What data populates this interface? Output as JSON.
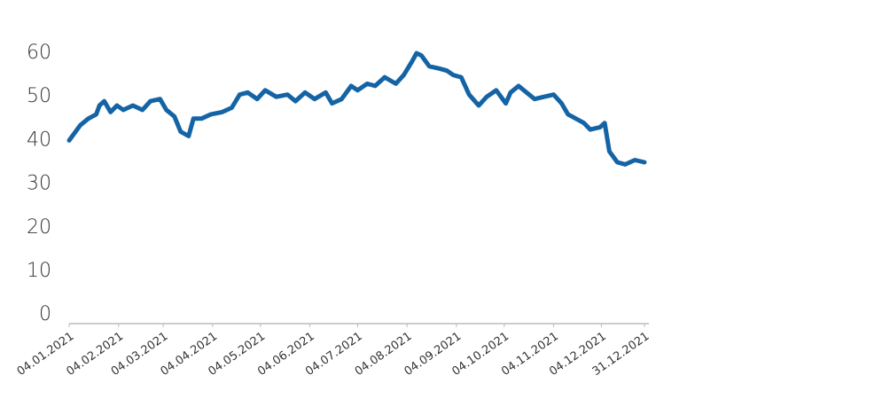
{
  "chart_data": {
    "type": "line",
    "x": [
      "04.01.2021",
      "11.01.2021",
      "16.01.2021",
      "21.01.2021",
      "23.01.2021",
      "26.01.2021",
      "30.01.2021",
      "03.02.2021",
      "07.02.2021",
      "13.02.2021",
      "19.02.2021",
      "24.02.2021",
      "02.03.2021",
      "06.03.2021",
      "11.03.2021",
      "15.03.2021",
      "20.03.2021",
      "23.03.2021",
      "28.03.2021",
      "03.04.2021",
      "10.04.2021",
      "16.04.2021",
      "21.04.2021",
      "26.04.2021",
      "02.05.2021",
      "07.05.2021",
      "14.05.2021",
      "21.05.2021",
      "26.05.2021",
      "01.06.2021",
      "07.06.2021",
      "14.06.2021",
      "18.06.2021",
      "24.06.2021",
      "30.06.2021",
      "04.07.2021",
      "10.07.2021",
      "15.07.2021",
      "21.07.2021",
      "28.07.2021",
      "02.08.2021",
      "07.08.2021",
      "10.08.2021",
      "13.08.2021",
      "18.08.2021",
      "24.08.2021",
      "29.08.2021",
      "02.09.2021",
      "07.09.2021",
      "12.09.2021",
      "18.09.2021",
      "23.09.2021",
      "29.09.2021",
      "05.10.2021",
      "08.10.2021",
      "13.10.2021",
      "18.10.2021",
      "23.10.2021",
      "29.10.2021",
      "04.11.2021",
      "09.11.2021",
      "13.11.2021",
      "18.11.2021",
      "23.11.2021",
      "27.11.2021",
      "03.12.2021",
      "06.12.2021",
      "09.12.2021",
      "14.12.2021",
      "19.12.2021",
      "25.12.2021",
      "31.12.2021"
    ],
    "series": [
      {
        "color": "#1464a5",
        "values": [
          40,
          43.5,
          45,
          46,
          48,
          49,
          46.5,
          48,
          47,
          48,
          47,
          49,
          49.5,
          47,
          45.5,
          42,
          41,
          45,
          45,
          46,
          46.5,
          47.5,
          50.5,
          51,
          49.5,
          51.5,
          50,
          50.5,
          49,
          51,
          49.5,
          51,
          48.5,
          49.5,
          52.5,
          51.5,
          53,
          52.5,
          54.5,
          53,
          55,
          58,
          60,
          59.5,
          57,
          56.5,
          56,
          55,
          54.5,
          50.5,
          48,
          50,
          51.5,
          48.5,
          51,
          52.5,
          51,
          49.5,
          50,
          50.5,
          48.5,
          46,
          45,
          44,
          42.5,
          43,
          44,
          37.5,
          35,
          34.5,
          35.5,
          35
        ]
      }
    ],
    "xlim": [
      "04.01.2021",
      "31.12.2021"
    ],
    "xticks": [
      "04.01.2021",
      "04.02.2021",
      "04.03.2021",
      "04.04.2021",
      "04.05.2021",
      "04.06.2021",
      "04.07.2021",
      "04.08.2021",
      "04.09.2021",
      "04.10.2021",
      "04.11.2021",
      "04.12.2021",
      "31.12.2021"
    ],
    "ylim": [
      -2,
      60
    ],
    "yticks": [
      0,
      10,
      20,
      30,
      40,
      50,
      60
    ]
  }
}
